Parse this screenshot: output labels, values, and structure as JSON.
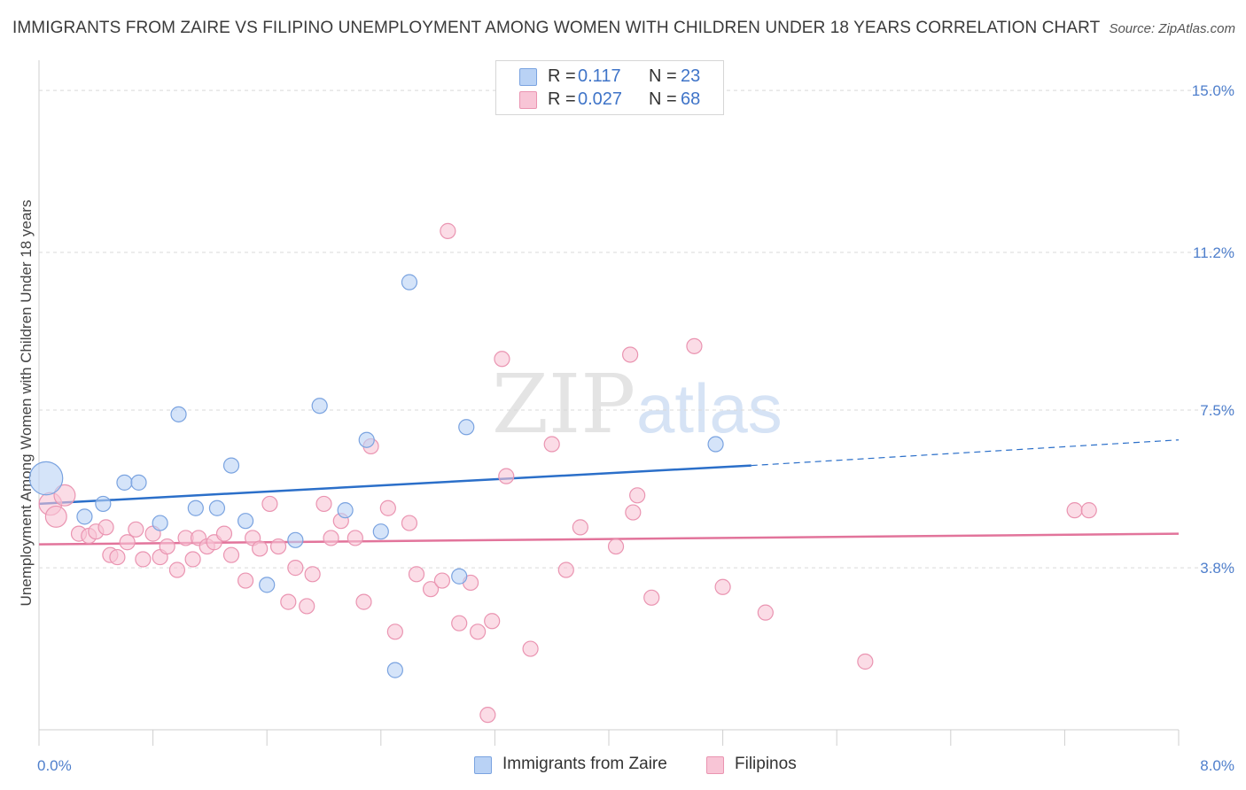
{
  "title": "IMMIGRANTS FROM ZAIRE VS FILIPINO UNEMPLOYMENT AMONG WOMEN WITH CHILDREN UNDER 18 YEARS CORRELATION CHART",
  "source": "Source: ZipAtlas.com",
  "watermark": {
    "zip": "ZIP",
    "atlas": "atlas"
  },
  "legend_top": [
    {
      "r_label": "R =",
      "r_value": "0.117",
      "n_label": "N =",
      "n_value": "23"
    },
    {
      "r_label": "R =",
      "r_value": "0.027",
      "n_label": "N =",
      "n_value": "68"
    }
  ],
  "legend_bottom": [
    "Immigrants from Zaire",
    "Filipinos"
  ],
  "colors": {
    "zaire_fill": "#b9d2f5",
    "zaire_stroke": "#7aa3e0",
    "zaire_line": "#2b6fc9",
    "filipino_fill": "#f8c5d6",
    "filipino_stroke": "#ea94b1",
    "filipino_line": "#e2749b",
    "tick": "#4f7fcc",
    "grid": "#d9d9d9"
  },
  "chart_data": {
    "type": "scatter",
    "title": "IMMIGRANTS FROM ZAIRE VS FILIPINO UNEMPLOYMENT AMONG WOMEN WITH CHILDREN UNDER 18 YEARS CORRELATION CHART",
    "xlabel": "",
    "ylabel": "Unemployment Among Women with Children Under 18 years",
    "xlim": [
      0,
      8
    ],
    "ylim": [
      0,
      15.5
    ],
    "x_tick_labels": [
      "0.0%",
      "8.0%"
    ],
    "y_ticks": [
      3.8,
      7.5,
      11.2,
      15.0
    ],
    "y_tick_labels": [
      "3.8%",
      "7.5%",
      "11.2%",
      "15.0%"
    ],
    "grid": "horizontal dashed",
    "legend_position": "top-center",
    "series": [
      {
        "name": "Immigrants from Zaire",
        "R": 0.117,
        "N": 23,
        "trend": {
          "x0": 0.0,
          "y0": 5.3,
          "x1": 5.0,
          "y1": 6.2,
          "dashed_to_x": 8.0,
          "dashed_to_y": 6.8
        },
        "points": [
          [
            0.05,
            5.9,
            2.2
          ],
          [
            0.32,
            5.0,
            1
          ],
          [
            0.45,
            5.3,
            1
          ],
          [
            0.6,
            5.8,
            1
          ],
          [
            0.7,
            5.8,
            1
          ],
          [
            0.85,
            4.85,
            1
          ],
          [
            0.98,
            7.4,
            1
          ],
          [
            1.1,
            5.2,
            1
          ],
          [
            1.25,
            5.2,
            1
          ],
          [
            1.35,
            6.2,
            1
          ],
          [
            1.45,
            4.9,
            1
          ],
          [
            1.6,
            3.4,
            1
          ],
          [
            1.8,
            4.45,
            1
          ],
          [
            1.97,
            7.6,
            1
          ],
          [
            2.15,
            5.15,
            1
          ],
          [
            2.3,
            6.8,
            1
          ],
          [
            2.4,
            4.65,
            1
          ],
          [
            2.5,
            1.4,
            1
          ],
          [
            2.6,
            10.5,
            1
          ],
          [
            2.95,
            3.6,
            1
          ],
          [
            3.0,
            7.1,
            1
          ],
          [
            4.75,
            6.7,
            1
          ]
        ]
      },
      {
        "name": "Filipinos",
        "R": 0.027,
        "N": 68,
        "trend": {
          "x0": 0.0,
          "y0": 4.35,
          "x1": 8.0,
          "y1": 4.6
        },
        "points": [
          [
            0.08,
            5.3,
            1.5
          ],
          [
            0.12,
            5.0,
            1.4
          ],
          [
            0.18,
            5.5,
            1.4
          ],
          [
            0.28,
            4.6,
            1
          ],
          [
            0.35,
            4.55,
            1
          ],
          [
            0.4,
            4.65,
            1
          ],
          [
            0.47,
            4.75,
            1
          ],
          [
            0.5,
            4.1,
            1
          ],
          [
            0.55,
            4.05,
            1
          ],
          [
            0.62,
            4.4,
            1
          ],
          [
            0.68,
            4.7,
            1
          ],
          [
            0.73,
            4.0,
            1
          ],
          [
            0.8,
            4.6,
            1
          ],
          [
            0.85,
            4.05,
            1
          ],
          [
            0.9,
            4.3,
            1
          ],
          [
            0.97,
            3.75,
            1
          ],
          [
            1.03,
            4.5,
            1
          ],
          [
            1.08,
            4.0,
            1
          ],
          [
            1.12,
            4.5,
            1
          ],
          [
            1.18,
            4.3,
            1
          ],
          [
            1.23,
            4.4,
            1
          ],
          [
            1.3,
            4.6,
            1
          ],
          [
            1.35,
            4.1,
            1
          ],
          [
            1.45,
            3.5,
            1
          ],
          [
            1.5,
            4.5,
            1
          ],
          [
            1.55,
            4.25,
            1
          ],
          [
            1.62,
            5.3,
            1
          ],
          [
            1.68,
            4.3,
            1
          ],
          [
            1.75,
            3.0,
            1
          ],
          [
            1.8,
            3.8,
            1
          ],
          [
            1.88,
            2.9,
            1
          ],
          [
            1.92,
            3.65,
            1
          ],
          [
            2.0,
            5.3,
            1
          ],
          [
            2.05,
            4.5,
            1
          ],
          [
            2.12,
            4.9,
            1
          ],
          [
            2.22,
            4.5,
            1
          ],
          [
            2.28,
            3.0,
            1
          ],
          [
            2.33,
            6.65,
            1
          ],
          [
            2.45,
            5.2,
            1
          ],
          [
            2.5,
            2.3,
            1
          ],
          [
            2.6,
            4.85,
            1
          ],
          [
            2.65,
            3.65,
            1
          ],
          [
            2.75,
            3.3,
            1
          ],
          [
            2.83,
            3.5,
            1
          ],
          [
            2.87,
            11.7,
            1
          ],
          [
            2.95,
            2.5,
            1
          ],
          [
            3.03,
            3.45,
            1
          ],
          [
            3.08,
            2.3,
            1
          ],
          [
            3.15,
            0.35,
            1
          ],
          [
            3.18,
            2.55,
            1
          ],
          [
            3.25,
            8.7,
            1
          ],
          [
            3.28,
            5.95,
            1
          ],
          [
            3.45,
            1.9,
            1
          ],
          [
            3.6,
            6.7,
            1
          ],
          [
            3.7,
            3.75,
            1
          ],
          [
            3.8,
            4.75,
            1
          ],
          [
            4.05,
            4.3,
            1
          ],
          [
            4.15,
            8.8,
            1
          ],
          [
            4.17,
            5.1,
            1
          ],
          [
            4.2,
            5.5,
            1
          ],
          [
            4.3,
            3.1,
            1
          ],
          [
            4.6,
            9.0,
            1
          ],
          [
            4.8,
            3.35,
            1
          ],
          [
            5.1,
            2.75,
            1
          ],
          [
            5.8,
            1.6,
            1
          ],
          [
            7.27,
            5.15,
            1
          ],
          [
            7.37,
            5.15,
            1
          ]
        ]
      }
    ]
  }
}
